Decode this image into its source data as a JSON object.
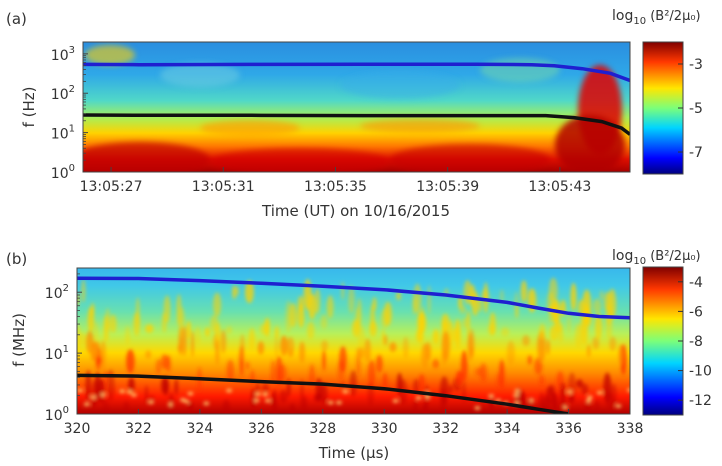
{
  "chart_data": [
    {
      "panel_label": "(a)",
      "type": "heatmap",
      "xlabel": "Time (UT) on 10/16/2015",
      "ylabel": "f (Hz)",
      "yscale": "log",
      "ylim": [
        1,
        2000
      ],
      "y_ticks": [
        1,
        10,
        100,
        1000
      ],
      "y_tick_labels": [
        [
          "10",
          "0"
        ],
        [
          "10",
          "1"
        ],
        [
          "10",
          "2"
        ],
        [
          "10",
          "3"
        ]
      ],
      "x_ticks": [
        1,
        5,
        9,
        13,
        17
      ],
      "x_tick_labels": [
        "13:05:27",
        "13:05:31",
        "13:05:35",
        "13:05:39",
        "13:05:43"
      ],
      "xlim_seconds_after_13_05_26": [
        0,
        19.5
      ],
      "colorbar": {
        "title_main": "log",
        "title_sub": "10",
        "title_tail": " (B²/2μ₀)",
        "range": [
          -8,
          -2
        ],
        "ticks": [
          -3,
          -5,
          -7
        ],
        "tick_labels": [
          "-3",
          "-5",
          "-7"
        ]
      },
      "series": [
        {
          "name": "blue",
          "color": "#1f1fd0",
          "x": [
            0,
            2,
            6,
            10,
            14,
            16,
            16.8,
            17.8,
            18.8,
            19.5
          ],
          "y": [
            540,
            530,
            540,
            545,
            545,
            530,
            500,
            420,
            320,
            210
          ]
        },
        {
          "name": "black",
          "color": "#111111",
          "x": [
            0,
            2,
            6,
            10,
            14,
            16.5,
            17.5,
            18.5,
            19.2,
            19.5
          ],
          "y": [
            28,
            27.5,
            27.5,
            27,
            27,
            27,
            24,
            19,
            13,
            9
          ]
        }
      ]
    },
    {
      "panel_label": "(b)",
      "type": "heatmap",
      "xlabel": "Time (μs)",
      "ylabel": "f (MHz)",
      "yscale": "log",
      "ylim": [
        1,
        250
      ],
      "y_ticks": [
        1,
        10,
        100
      ],
      "y_tick_labels": [
        [
          "10",
          "0"
        ],
        [
          "10",
          "1"
        ],
        [
          "10",
          "2"
        ]
      ],
      "x_ticks": [
        320,
        322,
        324,
        326,
        328,
        330,
        332,
        334,
        336,
        338
      ],
      "x_tick_labels": [
        "320",
        "322",
        "324",
        "326",
        "328",
        "330",
        "332",
        "334",
        "336",
        "338"
      ],
      "xlim": [
        320,
        338
      ],
      "colorbar": {
        "title_main": "log",
        "title_sub": "10",
        "title_tail": " (B²/2μ₀)",
        "range": [
          -13,
          -3
        ],
        "ticks": [
          -4,
          -6,
          -8,
          -10,
          -12
        ],
        "tick_labels": [
          "-4",
          "-6",
          "-8",
          "-10",
          "-12"
        ]
      },
      "series": [
        {
          "name": "blue",
          "color": "#1f1fd0",
          "x": [
            320,
            322,
            324,
            326,
            328,
            330,
            332,
            334,
            335,
            336,
            337,
            338
          ],
          "y": [
            170,
            168,
            155,
            140,
            125,
            110,
            90,
            68,
            55,
            45,
            40,
            38
          ]
        },
        {
          "name": "black",
          "color": "#111111",
          "x": [
            320,
            322,
            324,
            326,
            328,
            330,
            332,
            334,
            335,
            336
          ],
          "y": [
            4.3,
            4.2,
            3.8,
            3.4,
            3.1,
            2.6,
            2.0,
            1.45,
            1.2,
            1.0
          ]
        }
      ]
    }
  ]
}
